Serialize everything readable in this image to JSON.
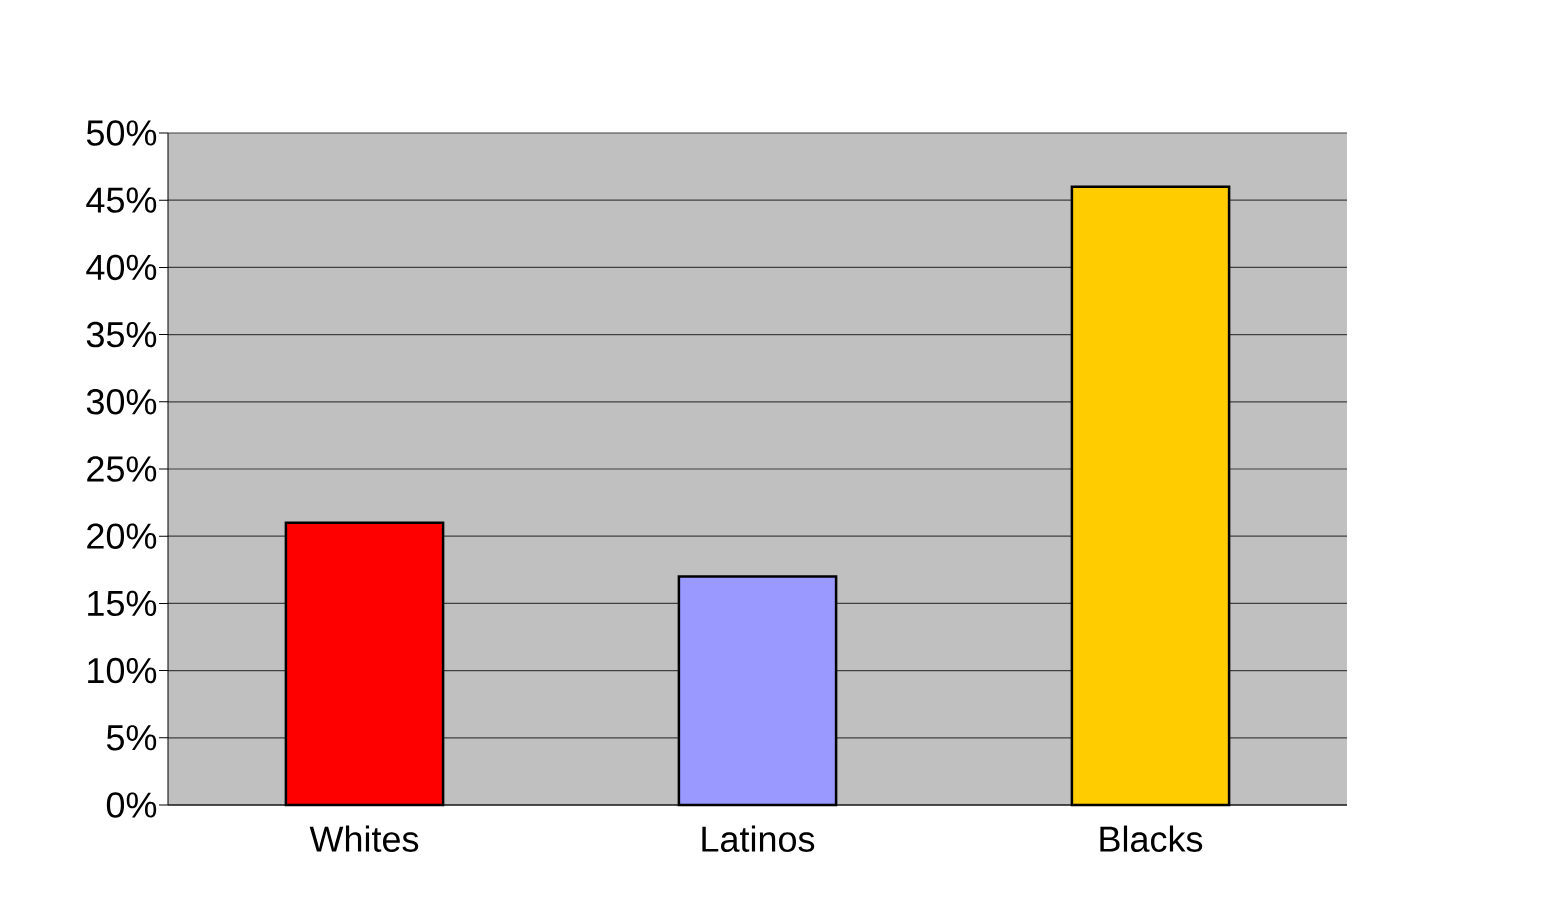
{
  "chart_data": {
    "type": "bar",
    "categories": [
      "Whites",
      "Latinos",
      "Blacks"
    ],
    "values": [
      21,
      17,
      46
    ],
    "colors": [
      "#ff0000",
      "#9999ff",
      "#ffcc00"
    ],
    "ylim": [
      0,
      50
    ],
    "yticks": [
      {
        "value": 0,
        "label": "0%"
      },
      {
        "value": 5,
        "label": "5%"
      },
      {
        "value": 10,
        "label": "10%"
      },
      {
        "value": 15,
        "label": "15%"
      },
      {
        "value": 20,
        "label": "20%"
      },
      {
        "value": 25,
        "label": "25%"
      },
      {
        "value": 30,
        "label": "30%"
      },
      {
        "value": 35,
        "label": "35%"
      },
      {
        "value": 40,
        "label": "40%"
      },
      {
        "value": 45,
        "label": "45%"
      },
      {
        "value": 50,
        "label": "50%"
      }
    ],
    "grid": "y",
    "legend": false
  }
}
